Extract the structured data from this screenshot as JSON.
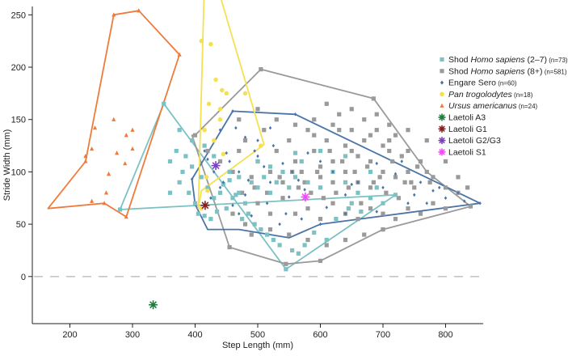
{
  "chart_data": {
    "type": "scatter",
    "title": "",
    "xlabel": "Step Length (mm)",
    "ylabel": "Stride Width (mm)",
    "xlim": [
      140,
      860
    ],
    "ylim": [
      -45,
      258
    ],
    "xticks": [
      200,
      300,
      400,
      500,
      600,
      700,
      800
    ],
    "yticks": [
      0,
      50,
      100,
      150,
      200,
      250
    ],
    "reference_line": {
      "y": 0,
      "style": "dashed",
      "color": "#bbbbbb"
    },
    "legend_placement": "right",
    "legend": [
      {
        "key": "shod_juv",
        "name": "Shod",
        "italic": "Homo sapiens",
        "suffix": " (2–7)",
        "n": "(n=73)",
        "marker": "square",
        "color": "#7cc2c4"
      },
      {
        "key": "shod_adult",
        "name": "Shod",
        "italic": "Homo sapiens",
        "suffix": " (8+)",
        "n": "(n=581)",
        "marker": "square",
        "color": "#9a9a9a"
      },
      {
        "key": "engare",
        "name": "Engare Sero",
        "italic": "",
        "suffix": "",
        "n": "(n=60)",
        "marker": "diamond",
        "color": "#4a74a6"
      },
      {
        "key": "pan",
        "name": "",
        "italic": "Pan trogolodytes",
        "suffix": "",
        "n": "(n=18)",
        "marker": "circle",
        "color": "#f5e050"
      },
      {
        "key": "ursus",
        "name": "",
        "italic": "Ursus americanus",
        "suffix": "",
        "n": "(n=24)",
        "marker": "triangle",
        "color": "#ee7b3c"
      },
      {
        "key": "a3",
        "name": "Laetoli A3",
        "italic": "",
        "suffix": "",
        "n": "",
        "marker": "asterisk",
        "color": "#1f7a3c"
      },
      {
        "key": "g1",
        "name": "Laetoli G1",
        "italic": "",
        "suffix": "",
        "n": "",
        "marker": "asterisk",
        "color": "#8b1a1a"
      },
      {
        "key": "g2g3",
        "name": "Laetoli G2/G3",
        "italic": "",
        "suffix": "",
        "n": "",
        "marker": "asterisk",
        "color": "#7a3fc2"
      },
      {
        "key": "s1",
        "name": "Laetoli S1",
        "italic": "",
        "suffix": "",
        "n": "",
        "marker": "asterisk",
        "color": "#ff40ff"
      }
    ],
    "hulls": {
      "shod_juv": [
        [
          280,
          64
        ],
        [
          350,
          165
        ],
        [
          545,
          7
        ],
        [
          720,
          78
        ]
      ],
      "shod_adult": [
        [
          400,
          135
        ],
        [
          505,
          198
        ],
        [
          685,
          170
        ],
        [
          770,
          100
        ],
        [
          840,
          67
        ],
        [
          700,
          45
        ],
        [
          600,
          15
        ],
        [
          545,
          12
        ],
        [
          455,
          28
        ],
        [
          395,
          135
        ]
      ],
      "engare": [
        [
          395,
          93
        ],
        [
          460,
          158
        ],
        [
          560,
          155
        ],
        [
          855,
          70
        ],
        [
          765,
          63
        ],
        [
          600,
          50
        ],
        [
          550,
          37
        ],
        [
          470,
          45
        ],
        [
          420,
          45
        ],
        [
          400,
          69
        ]
      ],
      "pan": [
        [
          405,
          65
        ],
        [
          415,
          285
        ],
        [
          440,
          268
        ],
        [
          510,
          126
        ],
        [
          410,
          82
        ]
      ],
      "ursus": [
        [
          165,
          65
        ],
        [
          225,
          110
        ],
        [
          270,
          250
        ],
        [
          310,
          254
        ],
        [
          375,
          212
        ],
        [
          290,
          57
        ],
        [
          255,
          70
        ]
      ]
    },
    "series": {
      "ursus": [
        [
          225,
          110
        ],
        [
          235,
          122
        ],
        [
          258,
          80
        ],
        [
          262,
          98
        ],
        [
          275,
          118
        ],
        [
          290,
          135
        ],
        [
          300,
          140
        ],
        [
          240,
          142
        ],
        [
          270,
          150
        ],
        [
          288,
          108
        ],
        [
          300,
          122
        ],
        [
          225,
          115
        ],
        [
          290,
          57
        ],
        [
          310,
          254
        ],
        [
          270,
          250
        ],
        [
          255,
          70
        ],
        [
          375,
          212
        ],
        [
          235,
          72
        ]
      ],
      "pan": [
        [
          415,
          285
        ],
        [
          440,
          268
        ],
        [
          410,
          225
        ],
        [
          425,
          222
        ],
        [
          433,
          188
        ],
        [
          443,
          178
        ],
        [
          450,
          175
        ],
        [
          422,
          165
        ],
        [
          415,
          140
        ],
        [
          418,
          95
        ],
        [
          420,
          82
        ],
        [
          445,
          117
        ],
        [
          480,
          175
        ],
        [
          440,
          160
        ],
        [
          505,
          125
        ],
        [
          430,
          130
        ],
        [
          440,
          150
        ],
        [
          410,
          65
        ]
      ],
      "engare": [
        [
          395,
          93
        ],
        [
          460,
          158
        ],
        [
          420,
          112
        ],
        [
          445,
          90
        ],
        [
          470,
          100
        ],
        [
          480,
          78
        ],
        [
          500,
          115
        ],
        [
          520,
          90
        ],
        [
          540,
          108
        ],
        [
          565,
          92
        ],
        [
          580,
          118
        ],
        [
          600,
          110
        ],
        [
          620,
          100
        ],
        [
          640,
          78
        ],
        [
          660,
          90
        ],
        [
          690,
          108
        ],
        [
          720,
          98
        ],
        [
          750,
          78
        ],
        [
          770,
          70
        ],
        [
          800,
          75
        ],
        [
          830,
          72
        ],
        [
          855,
          70
        ],
        [
          560,
          155
        ],
        [
          520,
          142
        ],
        [
          480,
          133
        ],
        [
          450,
          118
        ],
        [
          440,
          85
        ],
        [
          460,
          68
        ],
        [
          490,
          58
        ],
        [
          510,
          105
        ],
        [
          550,
          76
        ],
        [
          575,
          83
        ],
        [
          610,
          66
        ],
        [
          640,
          60
        ],
        [
          690,
          62
        ],
        [
          740,
          70
        ],
        [
          780,
          82
        ],
        [
          500,
          130
        ],
        [
          470,
          60
        ],
        [
          430,
          100
        ],
        [
          415,
          120
        ],
        [
          425,
          75
        ],
        [
          455,
          110
        ],
        [
          485,
          92
        ],
        [
          515,
          70
        ],
        [
          535,
          50
        ],
        [
          570,
          55
        ],
        [
          600,
          50
        ],
        [
          650,
          88
        ],
        [
          700,
          85
        ],
        [
          730,
          110
        ],
        [
          760,
          90
        ],
        [
          790,
          85
        ],
        [
          820,
          80
        ],
        [
          440,
          140
        ],
        [
          465,
          142
        ],
        [
          495,
          120
        ],
        [
          525,
          125
        ],
        [
          545,
          60
        ],
        [
          555,
          100
        ]
      ],
      "shod_juv": [
        [
          280,
          64
        ],
        [
          350,
          165
        ],
        [
          545,
          7
        ],
        [
          720,
          78
        ],
        [
          360,
          110
        ],
        [
          375,
          90
        ],
        [
          380,
          100
        ],
        [
          390,
          80
        ],
        [
          400,
          70
        ],
        [
          410,
          95
        ],
        [
          420,
          85
        ],
        [
          430,
          75
        ],
        [
          440,
          80
        ],
        [
          450,
          65
        ],
        [
          460,
          75
        ],
        [
          470,
          80
        ],
        [
          480,
          70
        ],
        [
          490,
          90
        ],
        [
          500,
          85
        ],
        [
          510,
          95
        ],
        [
          520,
          80
        ],
        [
          530,
          90
        ],
        [
          540,
          100
        ],
        [
          550,
          85
        ],
        [
          560,
          95
        ],
        [
          570,
          110
        ],
        [
          580,
          90
        ],
        [
          600,
          85
        ],
        [
          620,
          100
        ],
        [
          640,
          90
        ],
        [
          660,
          80
        ],
        [
          680,
          75
        ],
        [
          700,
          70
        ],
        [
          360,
          80
        ],
        [
          370,
          120
        ],
        [
          385,
          115
        ],
        [
          395,
          105
        ],
        [
          405,
          60
        ],
        [
          415,
          58
        ],
        [
          425,
          55
        ],
        [
          435,
          62
        ],
        [
          445,
          88
        ],
        [
          455,
          92
        ],
        [
          465,
          78
        ],
        [
          475,
          55
        ],
        [
          485,
          60
        ],
        [
          495,
          50
        ],
        [
          505,
          45
        ],
        [
          515,
          40
        ],
        [
          525,
          35
        ],
        [
          535,
          30
        ],
        [
          555,
          25
        ],
        [
          565,
          22
        ],
        [
          575,
          30
        ],
        [
          590,
          42
        ],
        [
          610,
          35
        ],
        [
          625,
          55
        ],
        [
          645,
          65
        ],
        [
          665,
          62
        ],
        [
          690,
          85
        ],
        [
          375,
          140
        ],
        [
          395,
          130
        ],
        [
          415,
          125
        ],
        [
          430,
          115
        ],
        [
          455,
          100
        ],
        [
          470,
          95
        ],
        [
          500,
          110
        ],
        [
          520,
          105
        ],
        [
          560,
          118
        ],
        [
          600,
          120
        ],
        [
          640,
          115
        ],
        [
          680,
          100
        ],
        [
          650,
          70
        ]
      ],
      "shod_adult": [
        [
          400,
          135
        ],
        [
          505,
          198
        ],
        [
          685,
          170
        ],
        [
          770,
          100
        ],
        [
          840,
          67
        ],
        [
          700,
          45
        ],
        [
          600,
          15
        ],
        [
          545,
          12
        ],
        [
          455,
          28
        ],
        [
          420,
          120
        ],
        [
          440,
          110
        ],
        [
          460,
          100
        ],
        [
          470,
          120
        ],
        [
          480,
          130
        ],
        [
          490,
          95
        ],
        [
          500,
          110
        ],
        [
          510,
          140
        ],
        [
          520,
          100
        ],
        [
          530,
          120
        ],
        [
          540,
          90
        ],
        [
          550,
          130
        ],
        [
          560,
          110
        ],
        [
          570,
          100
        ],
        [
          580,
          140
        ],
        [
          590,
          120
        ],
        [
          600,
          95
        ],
        [
          610,
          130
        ],
        [
          620,
          110
        ],
        [
          630,
          140
        ],
        [
          640,
          100
        ],
        [
          650,
          120
        ],
        [
          660,
          90
        ],
        [
          670,
          130
        ],
        [
          680,
          110
        ],
        [
          690,
          140
        ],
        [
          700,
          100
        ],
        [
          710,
          120
        ],
        [
          720,
          95
        ],
        [
          730,
          115
        ],
        [
          740,
          100
        ],
        [
          750,
          85
        ],
        [
          760,
          110
        ],
        [
          780,
          95
        ],
        [
          800,
          85
        ],
        [
          820,
          80
        ],
        [
          460,
          60
        ],
        [
          480,
          50
        ],
        [
          500,
          70
        ],
        [
          520,
          60
        ],
        [
          540,
          75
        ],
        [
          560,
          60
        ],
        [
          580,
          65
        ],
        [
          600,
          55
        ],
        [
          620,
          70
        ],
        [
          640,
          60
        ],
        [
          660,
          55
        ],
        [
          680,
          65
        ],
        [
          700,
          60
        ],
        [
          720,
          55
        ],
        [
          740,
          65
        ],
        [
          760,
          60
        ],
        [
          780,
          70
        ],
        [
          800,
          65
        ],
        [
          590,
          150
        ],
        [
          610,
          165
        ],
        [
          630,
          155
        ],
        [
          650,
          160
        ],
        [
          670,
          150
        ],
        [
          690,
          155
        ],
        [
          710,
          145
        ],
        [
          600,
          105
        ],
        [
          620,
          90
        ],
        [
          640,
          125
        ],
        [
          660,
          115
        ],
        [
          680,
          85
        ],
        [
          700,
          125
        ],
        [
          720,
          135
        ],
        [
          740,
          120
        ],
        [
          565,
          85
        ],
        [
          585,
          80
        ],
        [
          605,
          75
        ],
        [
          625,
          80
        ],
        [
          645,
          85
        ],
        [
          665,
          70
        ],
        [
          685,
          90
        ],
        [
          705,
          80
        ],
        [
          725,
          75
        ],
        [
          745,
          90
        ],
        [
          475,
          80
        ],
        [
          495,
          85
        ],
        [
          515,
          80
        ],
        [
          535,
          95
        ],
        [
          555,
          100
        ],
        [
          575,
          90
        ],
        [
          595,
          100
        ],
        [
          615,
          120
        ],
        [
          635,
          110
        ],
        [
          655,
          100
        ],
        [
          675,
          105
        ],
        [
          695,
          95
        ],
        [
          715,
          110
        ],
        [
          735,
          90
        ],
        [
          755,
          105
        ],
        [
          775,
          90
        ],
        [
          490,
          40
        ],
        [
          520,
          45
        ],
        [
          550,
          40
        ],
        [
          580,
          35
        ],
        [
          610,
          30
        ],
        [
          640,
          35
        ],
        [
          670,
          40
        ],
        [
          700,
          45
        ],
        [
          470,
          150
        ],
        [
          500,
          160
        ],
        [
          530,
          150
        ],
        [
          560,
          145
        ],
        [
          590,
          135
        ],
        [
          620,
          145
        ],
        [
          650,
          140
        ],
        [
          680,
          135
        ],
        [
          710,
          130
        ],
        [
          740,
          140
        ],
        [
          770,
          130
        ],
        [
          800,
          110
        ],
        [
          820,
          95
        ],
        [
          835,
          85
        ]
      ]
    },
    "specials": {
      "a3": [
        [
          333,
          -27
        ]
      ],
      "g1": [
        [
          416,
          68
        ]
      ],
      "g2g3": [
        [
          433,
          106
        ]
      ],
      "s1": [
        [
          576,
          76
        ]
      ]
    }
  }
}
